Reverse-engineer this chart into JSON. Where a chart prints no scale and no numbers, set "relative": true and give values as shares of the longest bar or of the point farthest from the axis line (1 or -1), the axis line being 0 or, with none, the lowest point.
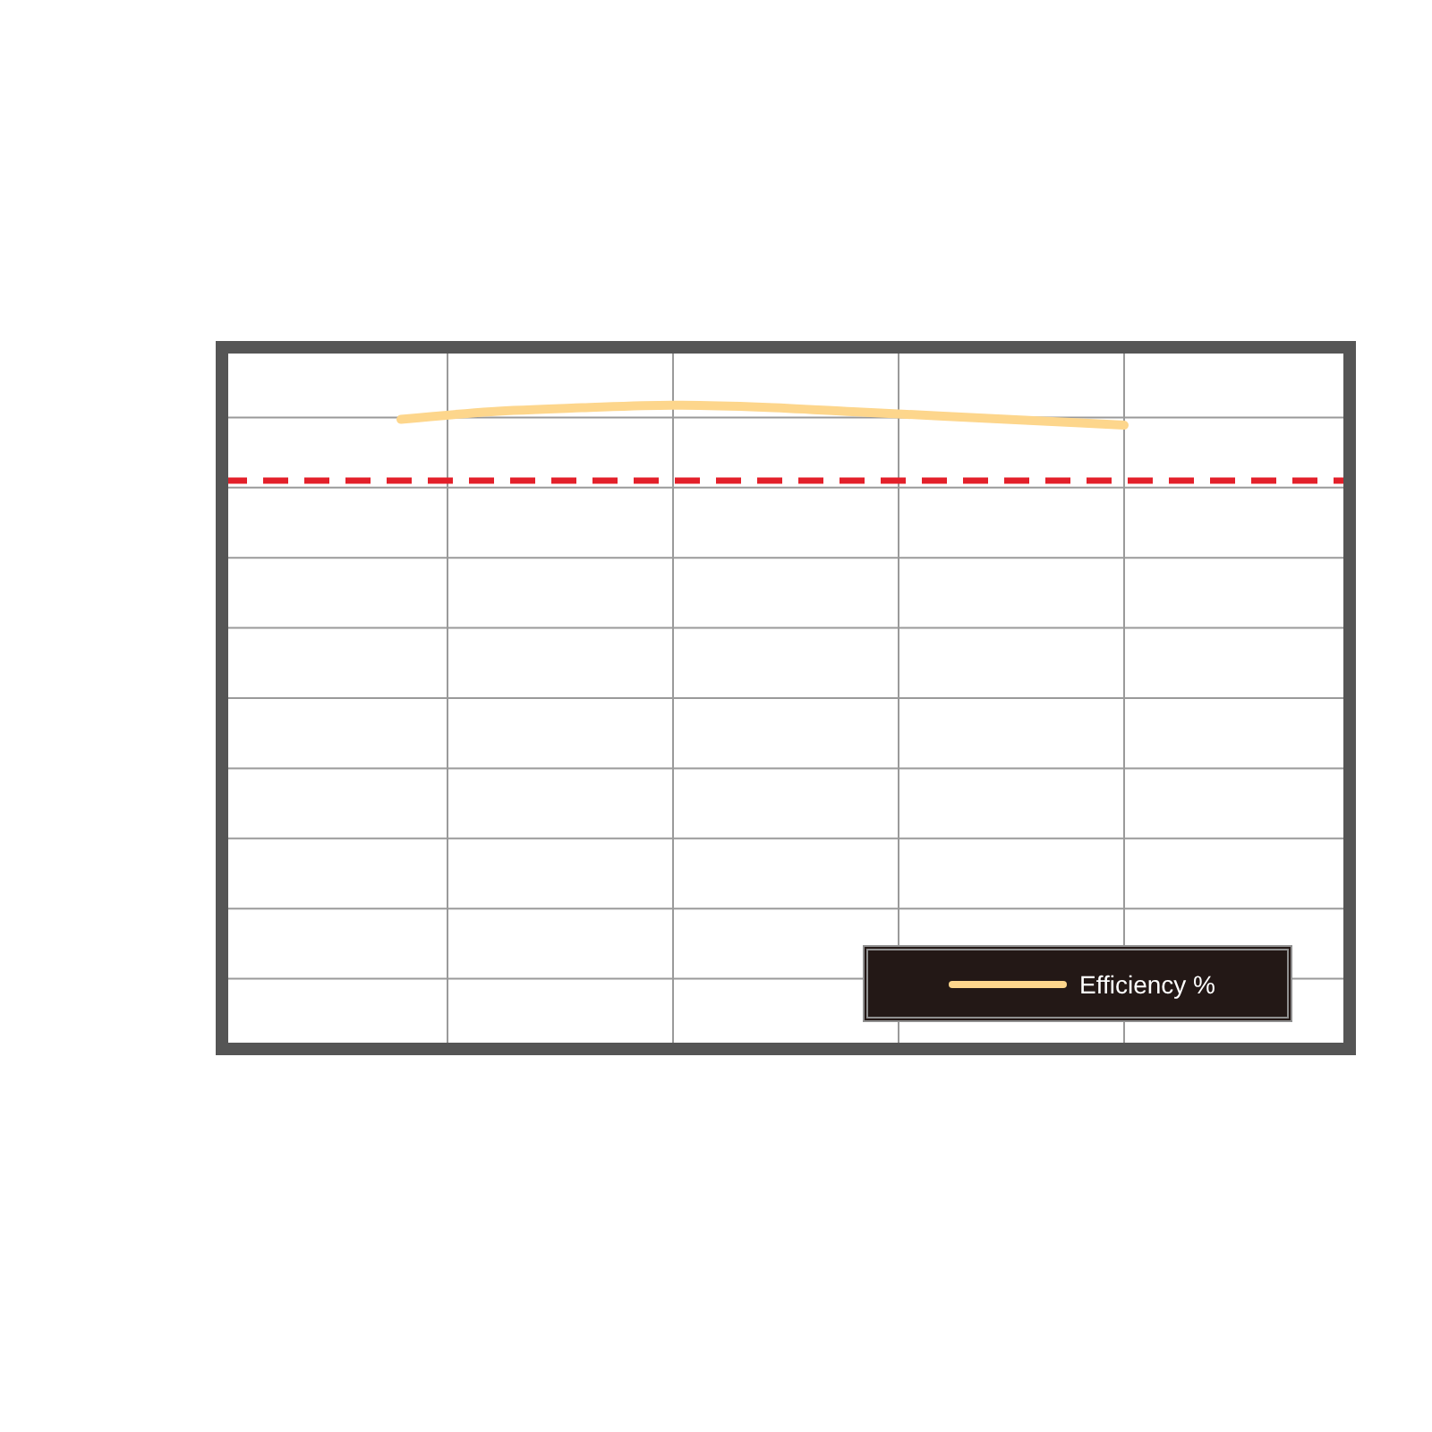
{
  "chart_data": {
    "type": "line",
    "categories": [
      null,
      null,
      null,
      null,
      null,
      null,
      null,
      null,
      null
    ],
    "series": [
      {
        "name": "Efficiency %",
        "color": "#fdd68c",
        "values": [
          0.978,
          0.99,
          0.996,
          1,
          0.997,
          0.99,
          0.983,
          0.976,
          0.969
        ]
      }
    ],
    "relative": true,
    "ref_lines": [
      {
        "axis": "y",
        "value": 0.883,
        "color": "#e3202a",
        "line_style": "dashed"
      }
    ],
    "grid": true,
    "legend": "bottom right"
  }
}
